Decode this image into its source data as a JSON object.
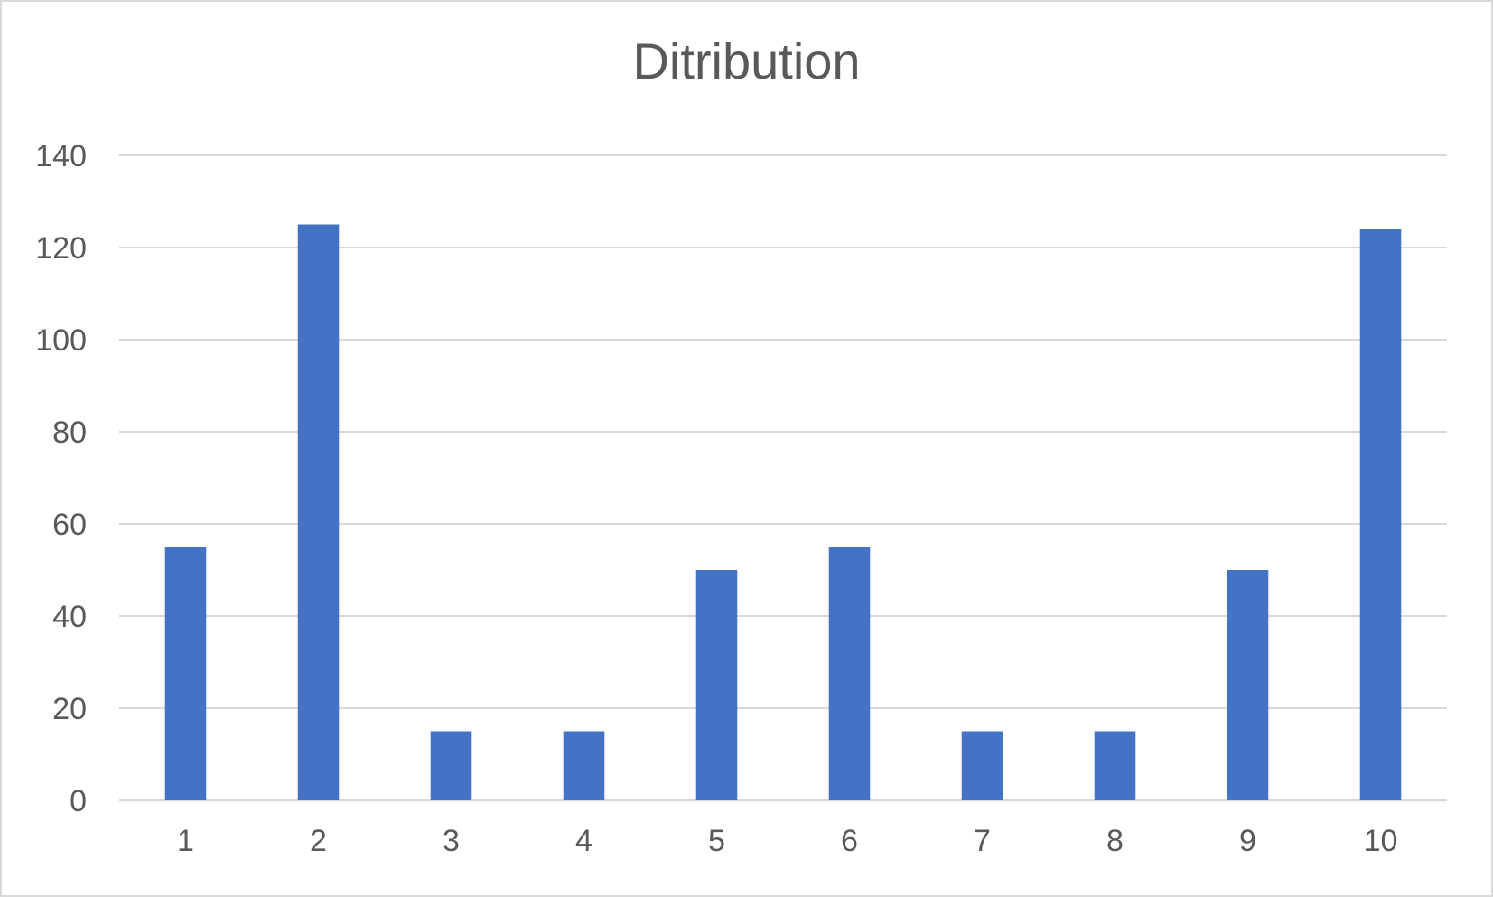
{
  "chart_data": {
    "type": "bar",
    "title": "Ditribution",
    "xlabel": "",
    "ylabel": "",
    "categories": [
      "1",
      "2",
      "3",
      "4",
      "5",
      "6",
      "7",
      "8",
      "9",
      "10"
    ],
    "values": [
      55,
      125,
      15,
      15,
      50,
      55,
      15,
      15,
      50,
      124
    ],
    "ylim": [
      0,
      140
    ],
    "yticks": [
      0,
      20,
      40,
      60,
      80,
      100,
      120,
      140
    ],
    "grid": true,
    "legend": "none",
    "bar_color": "#4472c4"
  }
}
